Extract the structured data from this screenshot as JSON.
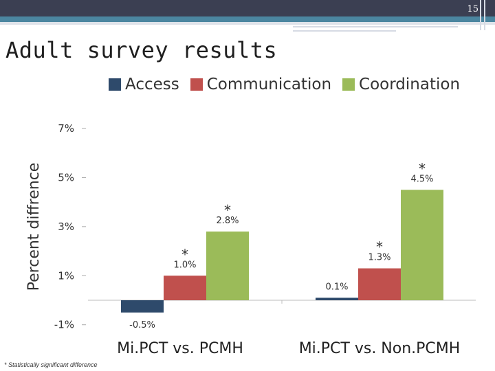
{
  "slide": {
    "number": "15",
    "title": "Adult survey results"
  },
  "footnote": "* Statistically significant difference",
  "colors": {
    "access": "#2e4a6b",
    "communication": "#c0504d",
    "coordination": "#9bbb59"
  },
  "chart_data": {
    "type": "bar",
    "title": "",
    "ylabel": "Percent diffrence",
    "xlabel": "",
    "categories": [
      "Mi.PCT vs. PCMH",
      "Mi.PCT vs. Non.PCMH"
    ],
    "series": [
      {
        "name": "Access",
        "values": [
          -0.5,
          0.1
        ],
        "labels": [
          "-0.5%",
          "0.1%"
        ],
        "significant": [
          false,
          false
        ]
      },
      {
        "name": "Communication",
        "values": [
          1.0,
          1.3
        ],
        "labels": [
          "1.0%",
          "1.3%"
        ],
        "significant": [
          true,
          true
        ]
      },
      {
        "name": "Coordination",
        "values": [
          2.8,
          4.5
        ],
        "labels": [
          "2.8%",
          "4.5%"
        ],
        "significant": [
          true,
          true
        ]
      }
    ],
    "yticks": [
      "-1%",
      "1%",
      "3%",
      "5%",
      "7%"
    ],
    "ytick_values": [
      -1,
      1,
      3,
      5,
      7
    ],
    "ylim": [
      -1,
      7
    ],
    "significance_marker": "*",
    "legend_position": "top",
    "grid": false
  }
}
